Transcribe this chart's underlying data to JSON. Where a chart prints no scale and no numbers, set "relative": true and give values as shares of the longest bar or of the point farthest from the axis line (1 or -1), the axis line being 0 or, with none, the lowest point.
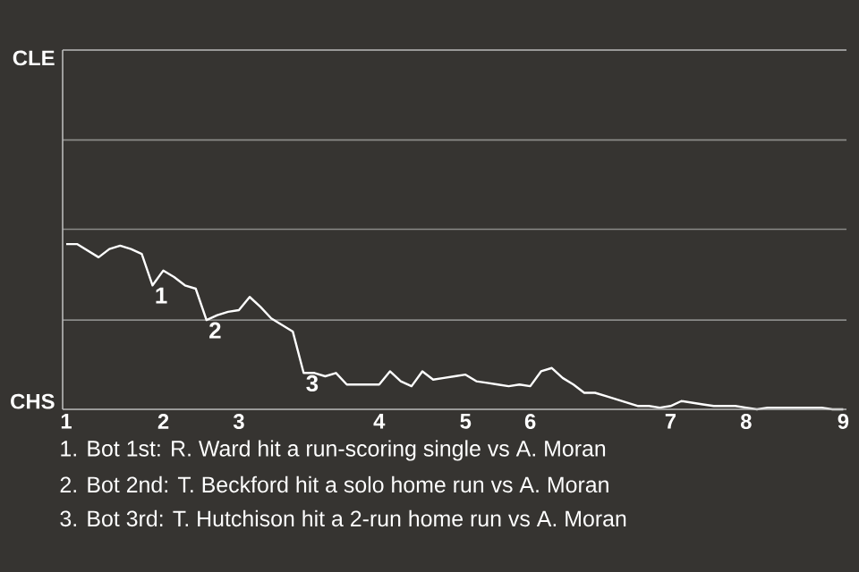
{
  "chart_data": {
    "type": "line",
    "relative": true,
    "categories": [
      "1",
      null,
      null,
      null,
      null,
      null,
      null,
      null,
      null,
      "2",
      null,
      null,
      null,
      null,
      null,
      null,
      "3",
      null,
      null,
      null,
      null,
      null,
      null,
      null,
      null,
      null,
      null,
      null,
      null,
      "4",
      null,
      null,
      null,
      null,
      null,
      null,
      null,
      "5",
      null,
      null,
      null,
      null,
      null,
      "6",
      null,
      null,
      null,
      null,
      null,
      null,
      null,
      null,
      null,
      null,
      null,
      null,
      "7",
      null,
      null,
      null,
      null,
      null,
      null,
      "8",
      null,
      null,
      null,
      null,
      null,
      null,
      null,
      null,
      "9"
    ],
    "ref_lines": [
      {
        "axis": "y",
        "value": 0.54,
        "color": "#8a8a88"
      },
      {
        "axis": "y",
        "value": 1.09,
        "color": "#8a8a88"
      },
      {
        "axis": "y",
        "value": 1.63,
        "color": "#8a8a88"
      }
    ],
    "series": [
      {
        "color": "#ffffff",
        "values": [
          1,
          1,
          0.96,
          0.92,
          0.97,
          0.99,
          0.97,
          0.94,
          0.75,
          0.84,
          0.8,
          0.75,
          0.73,
          0.54,
          0.57,
          0.59,
          0.6,
          0.68,
          0.62,
          0.55,
          0.51,
          0.47,
          0.22,
          0.22,
          0.2,
          0.22,
          0.15,
          0.15,
          0.15,
          0.15,
          0.23,
          0.17,
          0.14,
          0.23,
          0.18,
          0.19,
          0.2,
          0.21,
          0.17,
          0.16,
          0.15,
          0.14,
          0.15,
          0.14,
          0.23,
          0.25,
          0.19,
          0.15,
          0.1,
          0.1,
          0.08,
          0.06,
          0.04,
          0.02,
          0.02,
          0.01,
          0.02,
          0.05,
          0.04,
          0.03,
          0.02,
          0.02,
          0.02,
          0.01,
          0,
          0.01,
          0.01,
          0.01,
          0.01,
          0.01,
          0.01,
          0,
          0
        ]
      }
    ],
    "annotations": [
      {
        "text": "1",
        "y": 0.75
      },
      {
        "text": "2",
        "y": 0.54
      },
      {
        "text": "3",
        "y": 0.22
      },
      "CLE",
      "CHS",
      "1. Bot 1st: R. Ward hit a run-scoring single vs A. Moran",
      "2. Bot 2nd: T. Beckford hit a solo home run vs A. Moran",
      "3. Bot 3rd: T. Hutchison hit a 2-run home run vs A. Moran"
    ]
  }
}
